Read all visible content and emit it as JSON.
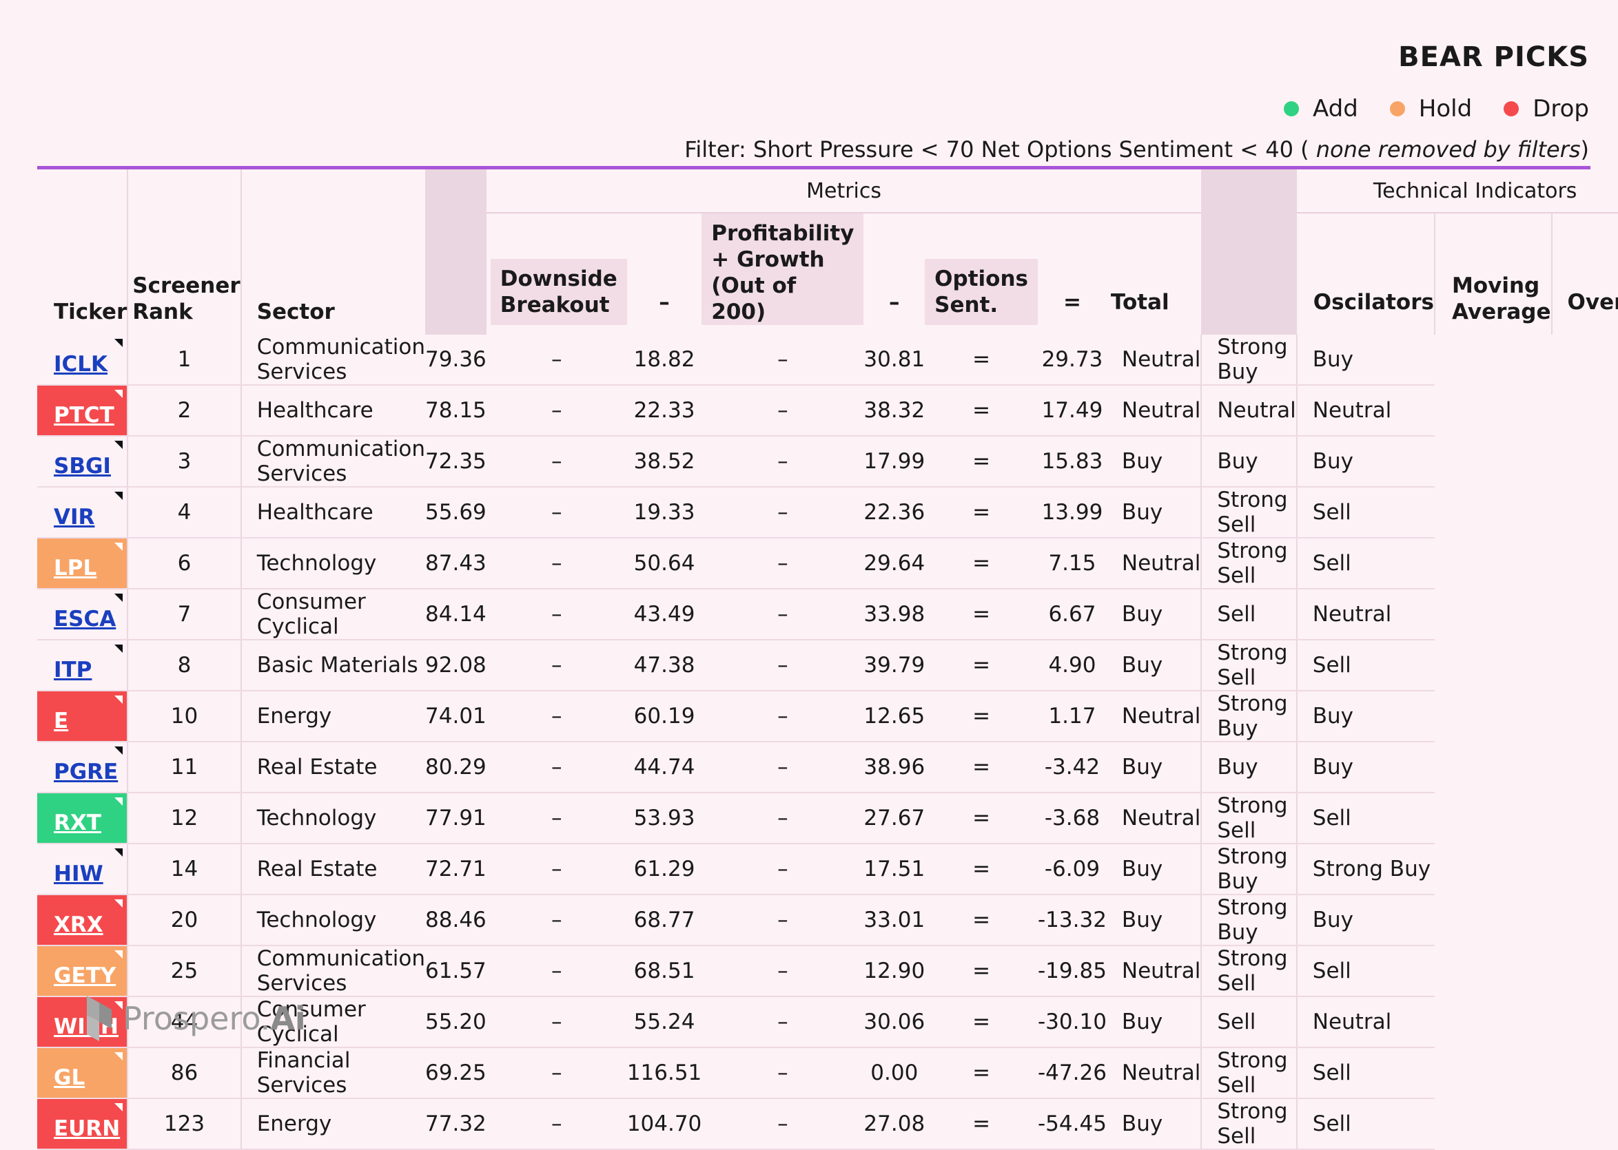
{
  "title": "BEAR PICKS",
  "legend": [
    {
      "label": "Add",
      "color": "#2fd282"
    },
    {
      "label": "Hold",
      "color": "#f8a466"
    },
    {
      "label": "Drop",
      "color": "#f44a4d"
    }
  ],
  "filter": {
    "prefix": "Filter: Short Pressure < 70  Net Options Sentiment < 40 (",
    "italic": " none removed by filters",
    "suffix": ")"
  },
  "groups": {
    "metrics": "Metrics",
    "technical": "Technical Indicators"
  },
  "columns": {
    "ticker": "Ticker",
    "rank_1": "Screener",
    "rank_2": "Rank",
    "sector": "Sector",
    "downside_1": "Downside",
    "downside_2": "Breakout",
    "minus": "–",
    "profit_1": "Profitability",
    "profit_2": "+ Growth",
    "profit_3": "(Out of 200)",
    "options_1": "Options",
    "options_2": "Sent.",
    "equals": "=",
    "total": "Total",
    "oscillators": "Oscilators",
    "moving_1": "Moving",
    "moving_2": "Average",
    "overall": "Overall"
  },
  "rows": [
    {
      "ticker": "ICLK",
      "status": "none",
      "rank": "1",
      "sector": "Communication Services",
      "downside": "79.36",
      "profit": "18.82",
      "options": "30.81",
      "total": "29.73",
      "osc": "Neutral",
      "ma": "Strong Buy",
      "overall": "Buy"
    },
    {
      "ticker": "PTCT",
      "status": "drop",
      "rank": "2",
      "sector": "Healthcare",
      "downside": "78.15",
      "profit": "22.33",
      "options": "38.32",
      "total": "17.49",
      "osc": "Neutral",
      "ma": "Neutral",
      "overall": "Neutral"
    },
    {
      "ticker": "SBGI",
      "status": "none",
      "rank": "3",
      "sector": "Communication Services",
      "downside": "72.35",
      "profit": "38.52",
      "options": "17.99",
      "total": "15.83",
      "osc": "Buy",
      "ma": "Buy",
      "overall": "Buy"
    },
    {
      "ticker": "VIR",
      "status": "none",
      "rank": "4",
      "sector": "Healthcare",
      "downside": "55.69",
      "profit": "19.33",
      "options": "22.36",
      "total": "13.99",
      "osc": "Buy",
      "ma": "Strong Sell",
      "overall": "Sell"
    },
    {
      "ticker": "LPL",
      "status": "hold",
      "rank": "6",
      "sector": "Technology",
      "downside": "87.43",
      "profit": "50.64",
      "options": "29.64",
      "total": "7.15",
      "osc": "Neutral",
      "ma": "Strong Sell",
      "overall": "Sell"
    },
    {
      "ticker": "ESCA",
      "status": "none",
      "rank": "7",
      "sector": "Consumer Cyclical",
      "downside": "84.14",
      "profit": "43.49",
      "options": "33.98",
      "total": "6.67",
      "osc": "Buy",
      "ma": "Sell",
      "overall": "Neutral"
    },
    {
      "ticker": "ITP",
      "status": "none",
      "rank": "8",
      "sector": "Basic Materials",
      "downside": "92.08",
      "profit": "47.38",
      "options": "39.79",
      "total": "4.90",
      "osc": "Buy",
      "ma": "Strong Sell",
      "overall": "Sell"
    },
    {
      "ticker": "E",
      "status": "drop",
      "rank": "10",
      "sector": "Energy",
      "downside": "74.01",
      "profit": "60.19",
      "options": "12.65",
      "total": "1.17",
      "osc": "Neutral",
      "ma": "Strong Buy",
      "overall": "Buy"
    },
    {
      "ticker": "PGRE",
      "status": "none",
      "rank": "11",
      "sector": "Real Estate",
      "downside": "80.29",
      "profit": "44.74",
      "options": "38.96",
      "total": "-3.42",
      "osc": "Buy",
      "ma": "Buy",
      "overall": "Buy"
    },
    {
      "ticker": "RXT",
      "status": "add",
      "rank": "12",
      "sector": "Technology",
      "downside": "77.91",
      "profit": "53.93",
      "options": "27.67",
      "total": "-3.68",
      "osc": "Neutral",
      "ma": "Strong Sell",
      "overall": "Sell"
    },
    {
      "ticker": "HIW",
      "status": "none",
      "rank": "14",
      "sector": "Real Estate",
      "downside": "72.71",
      "profit": "61.29",
      "options": "17.51",
      "total": "-6.09",
      "osc": "Buy",
      "ma": "Strong Buy",
      "overall": "Strong Buy"
    },
    {
      "ticker": "XRX",
      "status": "drop",
      "rank": "20",
      "sector": "Technology",
      "downside": "88.46",
      "profit": "68.77",
      "options": "33.01",
      "total": "-13.32",
      "osc": "Buy",
      "ma": "Strong Buy",
      "overall": "Buy"
    },
    {
      "ticker": "GETY",
      "status": "hold",
      "rank": "25",
      "sector": "Communication Services",
      "downside": "61.57",
      "profit": "68.51",
      "options": "12.90",
      "total": "-19.85",
      "osc": "Neutral",
      "ma": "Strong Sell",
      "overall": "Sell"
    },
    {
      "ticker": "WISH",
      "status": "drop",
      "rank": "44",
      "sector": "Consumer Cyclical",
      "downside": "55.20",
      "profit": "55.24",
      "options": "30.06",
      "total": "-30.10",
      "osc": "Buy",
      "ma": "Sell",
      "overall": "Neutral"
    },
    {
      "ticker": "GL",
      "status": "hold",
      "rank": "86",
      "sector": "Financial Services",
      "downside": "69.25",
      "profit": "116.51",
      "options": "0.00",
      "total": "-47.26",
      "osc": "Neutral",
      "ma": "Strong Sell",
      "overall": "Sell"
    },
    {
      "ticker": "EURN",
      "status": "drop",
      "rank": "123",
      "sector": "Energy",
      "downside": "77.32",
      "profit": "104.70",
      "options": "27.08",
      "total": "-54.45",
      "osc": "Buy",
      "ma": "Strong Sell",
      "overall": "Sell"
    }
  ],
  "logo": {
    "text": "Prospero.",
    "suffix": "Ai"
  }
}
